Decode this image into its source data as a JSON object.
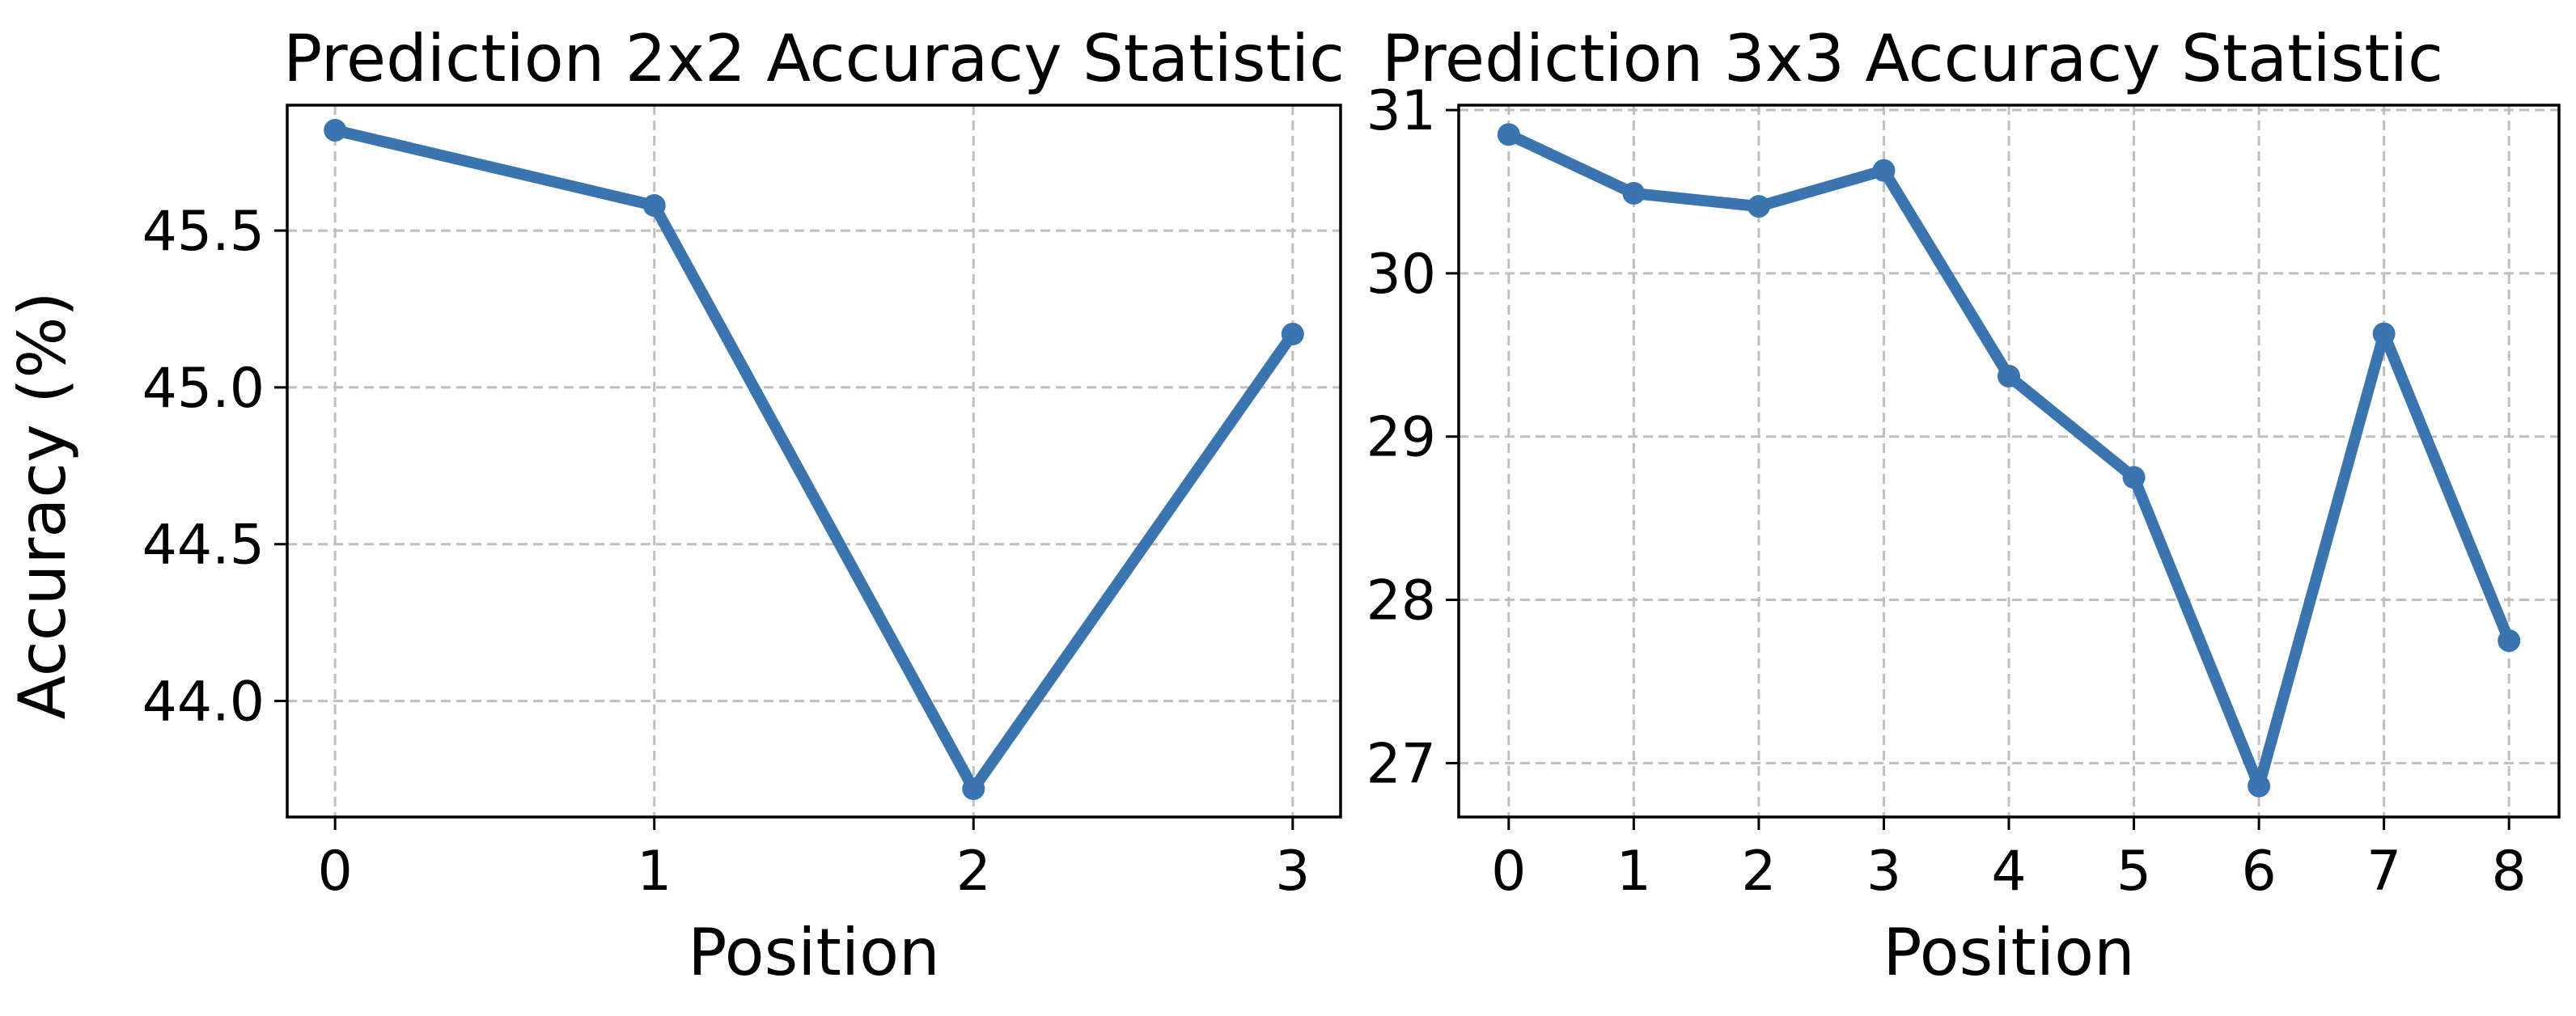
{
  "colors": {
    "line": "#3b75af",
    "grid": "#bfbfbf",
    "axis": "#000000"
  },
  "chart_data": [
    {
      "type": "line",
      "title": "Prediction 2x2 Accuracy Statistic",
      "xlabel": "Position",
      "ylabel": "Accuracy (%)",
      "x": [
        0,
        1,
        2,
        3
      ],
      "series": [
        {
          "values": [
            45.82,
            45.58,
            43.72,
            45.17
          ]
        }
      ],
      "xlim": [
        -0.15,
        3.15
      ],
      "ylim": [
        43.63,
        45.9
      ],
      "xticks": [
        "0",
        "1",
        "2",
        "3"
      ],
      "yticks": [
        "44.0",
        "44.5",
        "45.0",
        "45.5"
      ],
      "grid": true,
      "marker": "circle"
    },
    {
      "type": "line",
      "title": "Prediction 3x3 Accuracy Statistic",
      "xlabel": "Position",
      "ylabel": "",
      "x": [
        0,
        1,
        2,
        3,
        4,
        5,
        6,
        7,
        8
      ],
      "series": [
        {
          "values": [
            30.85,
            30.49,
            30.41,
            30.63,
            29.37,
            28.75,
            26.86,
            29.63,
            27.75
          ]
        }
      ],
      "xlim": [
        -0.4,
        8.4
      ],
      "ylim": [
        26.67,
        31.03
      ],
      "xticks": [
        "0",
        "1",
        "2",
        "3",
        "4",
        "5",
        "6",
        "7",
        "8"
      ],
      "yticks": [
        "27",
        "28",
        "29",
        "30",
        "31"
      ],
      "grid": true,
      "marker": "circle"
    }
  ]
}
